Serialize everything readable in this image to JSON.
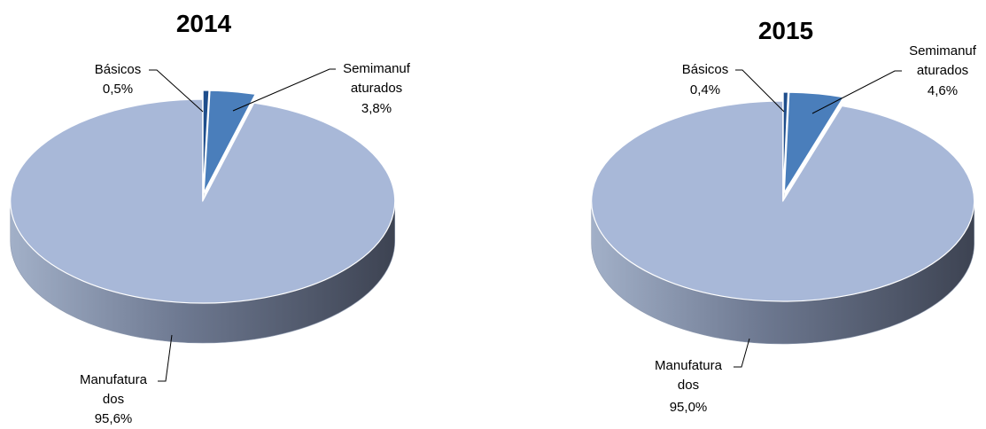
{
  "chart_data": [
    {
      "type": "pie",
      "title": "2014",
      "slices": [
        {
          "name": "Básicos",
          "value": 0.5,
          "name_lines": [
            "Básicos"
          ],
          "pct_text": "0,5%",
          "color": "#1f4e8c"
        },
        {
          "name": "Semimanufaturados",
          "value": 3.8,
          "name_lines": [
            "Semimanuf",
            "aturados"
          ],
          "pct_text": "3,8%",
          "color": "#4a7ebb"
        },
        {
          "name": "Manufaturados",
          "value": 95.6,
          "name_lines": [
            "Manufatura",
            "dos"
          ],
          "pct_text": "95,6%",
          "color": "#a8b8d8"
        }
      ]
    },
    {
      "type": "pie",
      "title": "2015",
      "slices": [
        {
          "name": "Básicos",
          "value": 0.4,
          "name_lines": [
            "Básicos"
          ],
          "pct_text": "0,4%",
          "color": "#1f4e8c"
        },
        {
          "name": "Semimanufaturados",
          "value": 4.6,
          "name_lines": [
            "Semimanuf",
            "aturados"
          ],
          "pct_text": "4,6%",
          "color": "#4a7ebb"
        },
        {
          "name": "Manufaturados",
          "value": 95.0,
          "name_lines": [
            "Manufatura",
            "dos"
          ],
          "pct_text": "95,0%",
          "color": "#a8b8d8"
        }
      ]
    }
  ]
}
